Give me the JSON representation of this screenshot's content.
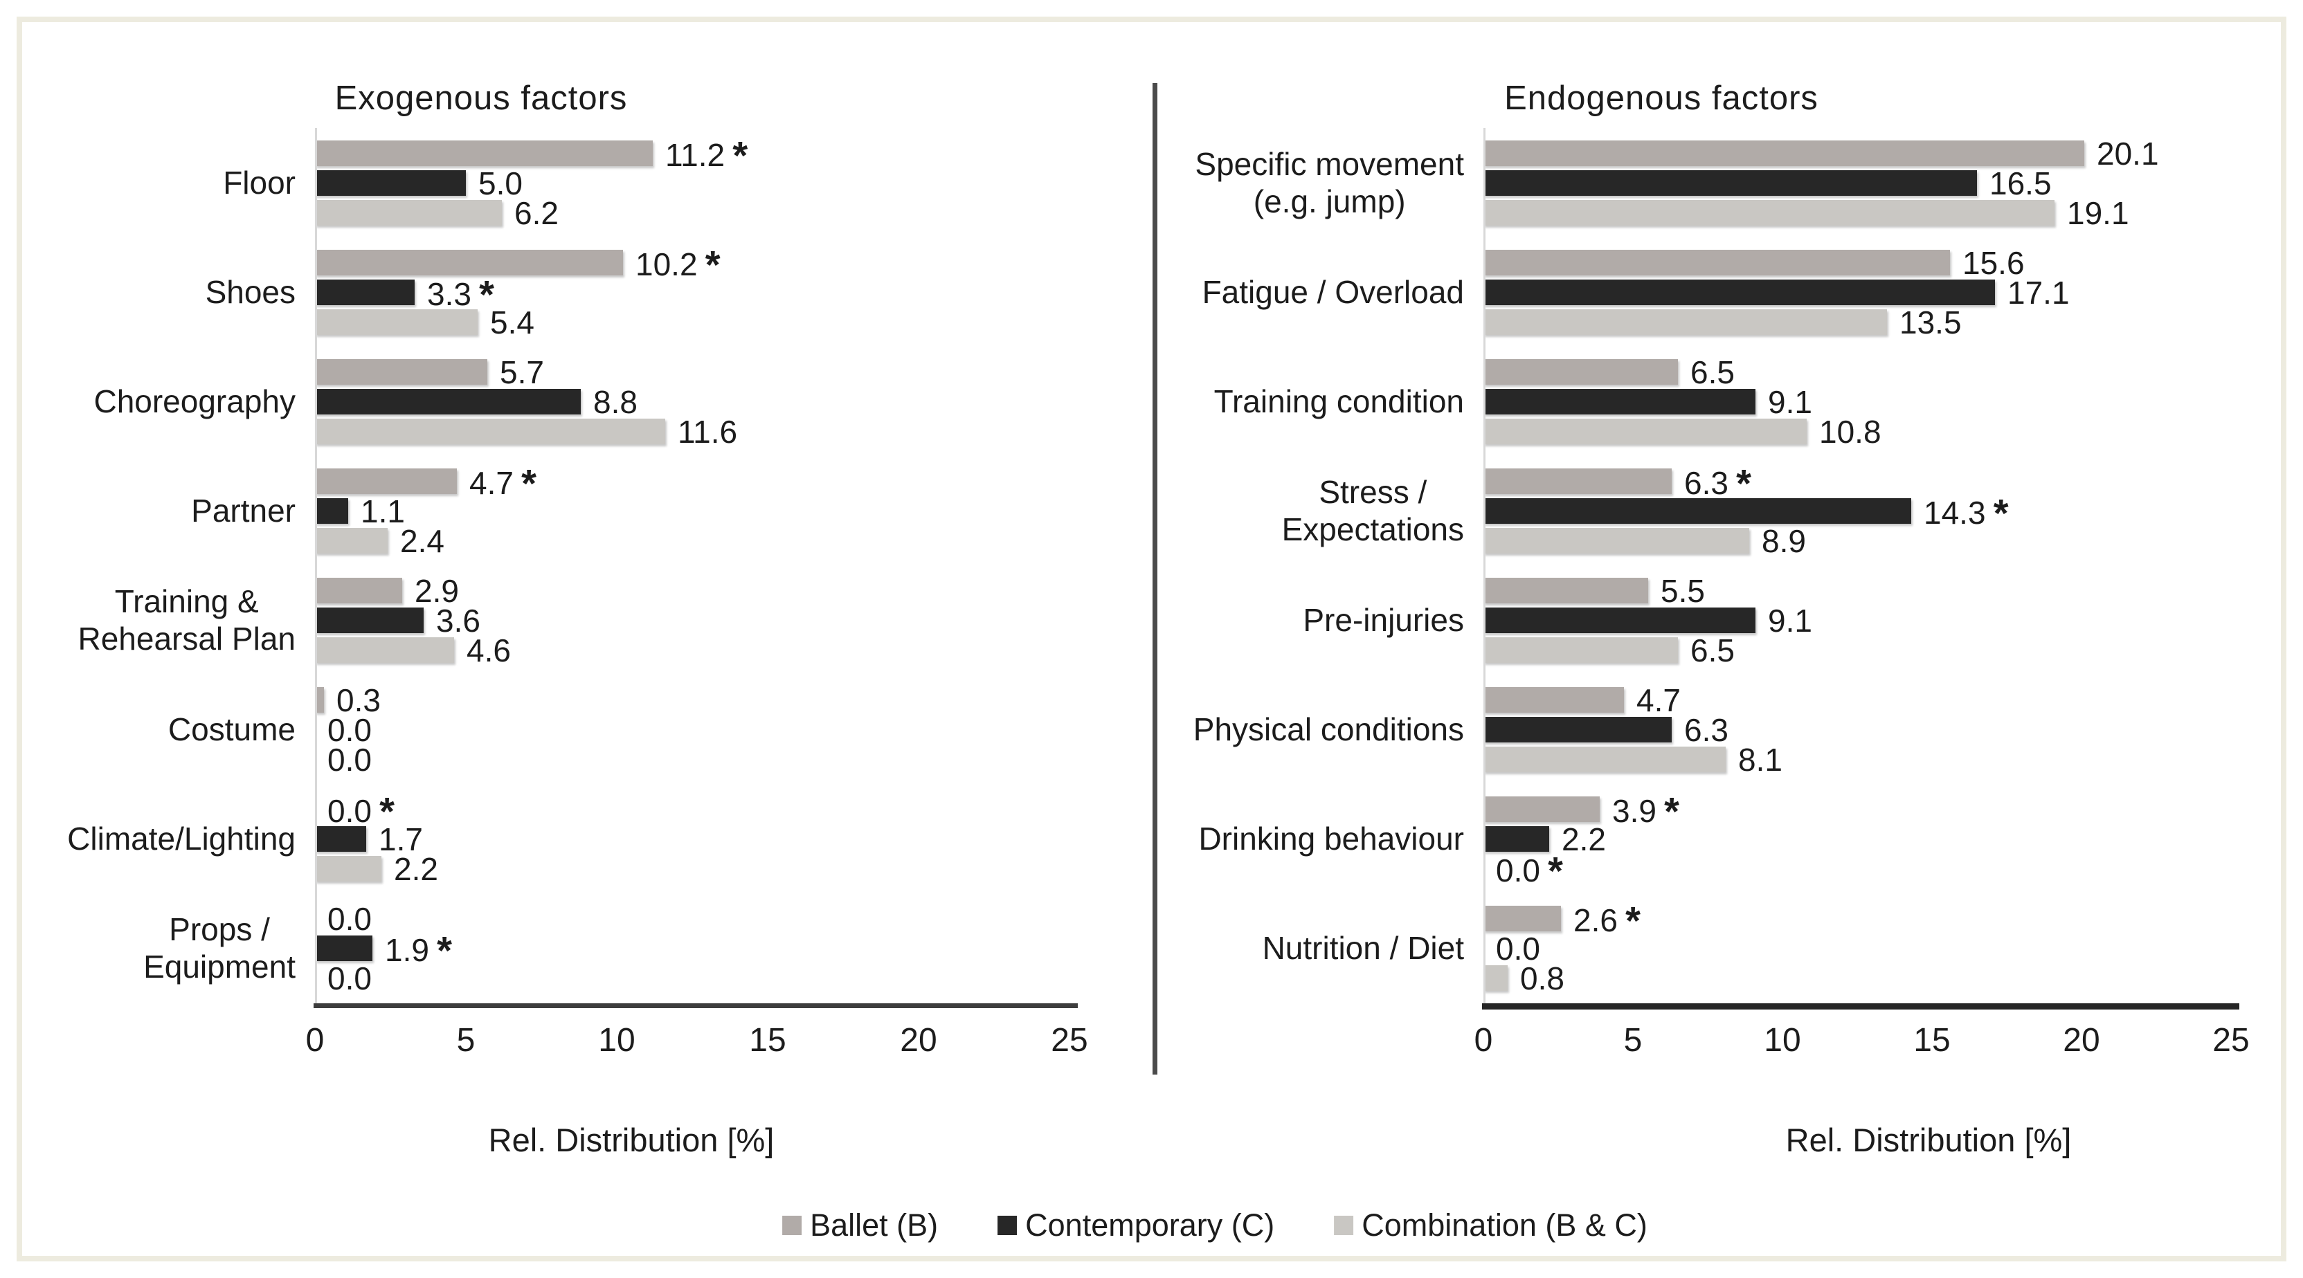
{
  "figure": {
    "background": "#ffffff",
    "frame_border_color": "#edebdf",
    "text_color": "#1c1c1c"
  },
  "legend": {
    "items": [
      {
        "label": "Ballet (B)",
        "color": "#b1aba8"
      },
      {
        "label": "Contemporary (C)",
        "color": "#272727"
      },
      {
        "label": "Combination (B & C)",
        "color": "#c9c7c3"
      }
    ]
  },
  "chart_data": [
    {
      "type": "bar",
      "orientation": "horizontal",
      "title": "Exogenous factors",
      "xlabel": "Rel. Distribution [%]",
      "xlim": [
        0,
        25
      ],
      "xticks": [
        0,
        5,
        10,
        15,
        20,
        25
      ],
      "grid": false,
      "legend_position": "bottom-shared",
      "significance_marker": "*",
      "categories": [
        "Floor",
        "Shoes",
        "Choreography",
        "Partner",
        "Training &\nRehearsal Plan",
        "Costume",
        "Climate/Lighting",
        "Props /\nEquipment"
      ],
      "series": [
        {
          "name": "Ballet (B)",
          "values": [
            11.2,
            10.2,
            5.7,
            4.7,
            2.9,
            0.3,
            0.0,
            0.0
          ],
          "significant": [
            true,
            true,
            false,
            true,
            false,
            false,
            true,
            false
          ]
        },
        {
          "name": "Contemporary (C)",
          "values": [
            5.0,
            3.3,
            8.8,
            1.1,
            3.6,
            0.0,
            1.7,
            1.9
          ],
          "significant": [
            false,
            true,
            false,
            false,
            false,
            false,
            false,
            true
          ]
        },
        {
          "name": "Combination (B & C)",
          "values": [
            6.2,
            5.4,
            11.6,
            2.4,
            4.6,
            0.0,
            2.2,
            0.0
          ],
          "significant": [
            false,
            false,
            false,
            false,
            false,
            false,
            false,
            false
          ]
        }
      ]
    },
    {
      "type": "bar",
      "orientation": "horizontal",
      "title": "Endogenous factors",
      "xlabel": "Rel. Distribution [%]",
      "xlim": [
        0,
        25
      ],
      "xticks": [
        0,
        5,
        10,
        15,
        20,
        25
      ],
      "grid": false,
      "legend_position": "bottom-shared",
      "significance_marker": "*",
      "categories": [
        "Specific movement\n(e.g. jump)",
        "Fatigue / Overload",
        "Training condition",
        "Stress /\nExpectations",
        "Pre-injuries",
        "Physical conditions",
        "Drinking behaviour",
        "Nutrition / Diet"
      ],
      "series": [
        {
          "name": "Ballet (B)",
          "values": [
            20.1,
            15.6,
            6.5,
            6.3,
            5.5,
            4.7,
            3.9,
            2.6
          ],
          "significant": [
            false,
            false,
            false,
            true,
            false,
            false,
            true,
            true
          ]
        },
        {
          "name": "Contemporary (C)",
          "values": [
            16.5,
            17.1,
            9.1,
            14.3,
            9.1,
            6.3,
            2.2,
            0.0
          ],
          "significant": [
            false,
            false,
            false,
            true,
            false,
            false,
            false,
            false
          ]
        },
        {
          "name": "Combination (B & C)",
          "values": [
            19.1,
            13.5,
            10.8,
            8.9,
            6.5,
            8.1,
            0.0,
            0.8
          ],
          "significant": [
            false,
            false,
            false,
            false,
            false,
            false,
            true,
            false
          ]
        }
      ]
    }
  ]
}
